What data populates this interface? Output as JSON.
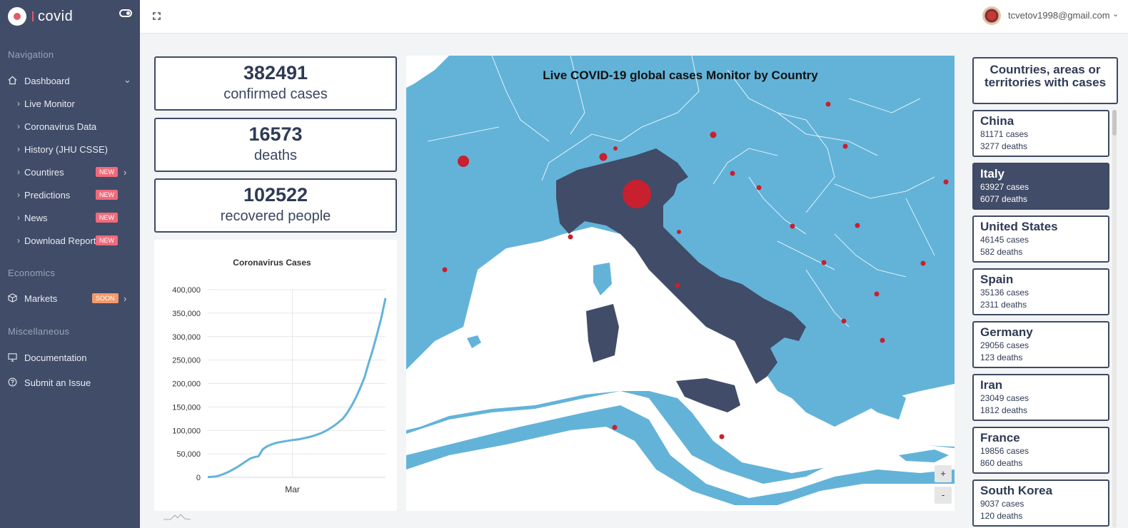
{
  "sidebar": {
    "logo_text": "covid",
    "sections": {
      "navigation": "Navigation",
      "economics": "Economics",
      "misc": "Miscellaneous"
    },
    "items": [
      {
        "label": "Dashboard"
      },
      {
        "label": "Live Monitor"
      },
      {
        "label": "Coronavirus Data"
      },
      {
        "label": "History (JHU CSSE)"
      },
      {
        "label": "Countires",
        "badge": "NEW"
      },
      {
        "label": "Predictions",
        "badge": "NEW"
      },
      {
        "label": "News",
        "badge": "NEW"
      },
      {
        "label": "Download Report",
        "badge": "NEW"
      },
      {
        "label": "Markets",
        "badge": "SOON"
      },
      {
        "label": "Documentation"
      },
      {
        "label": "Submit an Issue"
      }
    ]
  },
  "header": {
    "user_email": "tcvetov1998@gmail.com"
  },
  "stats": [
    {
      "value": "382491",
      "caption": "confirmed cases"
    },
    {
      "value": "16573",
      "caption": "deaths"
    },
    {
      "value": "102522",
      "caption": "recovered people"
    }
  ],
  "map": {
    "title": "Live COVID-19 global cases Monitor by Country",
    "zoom_in": "+",
    "zoom_out": "-",
    "colors": {
      "sea": "#63b3d9",
      "land": "#ffffff",
      "highlight": "#414c68",
      "marker": "#c8202e"
    }
  },
  "country_list": {
    "heading": "Countries, areas or territories with cases",
    "countries": [
      {
        "name": "China",
        "cases": "81171 cases",
        "deaths": "3277 deaths"
      },
      {
        "name": "Italy",
        "cases": "63927 cases",
        "deaths": "6077 deaths",
        "active": true
      },
      {
        "name": "United States",
        "cases": "46145 cases",
        "deaths": "582 deaths"
      },
      {
        "name": "Spain",
        "cases": "35136 cases",
        "deaths": "2311 deaths"
      },
      {
        "name": "Germany",
        "cases": "29056 cases",
        "deaths": "123 deaths"
      },
      {
        "name": "Iran",
        "cases": "23049 cases",
        "deaths": "1812 deaths"
      },
      {
        "name": "France",
        "cases": "19856 cases",
        "deaths": "860 deaths"
      },
      {
        "name": "South Korea",
        "cases": "9037 cases",
        "deaths": "120 deaths"
      }
    ]
  },
  "chart_data": {
    "type": "line",
    "title": "Coronavirus Cases",
    "xlabel": "",
    "ylabel": "",
    "x_tick_labels": [
      "Mar"
    ],
    "y_ticks": [
      0,
      50000,
      100000,
      150000,
      200000,
      250000,
      300000,
      350000,
      400000
    ],
    "y_tick_labels": [
      "0",
      "50,000",
      "100,000",
      "150,000",
      "200,000",
      "250,000",
      "300,000",
      "350,000",
      "400,000"
    ],
    "ylim": [
      0,
      400000
    ],
    "grid": true,
    "color": "#63b3d9",
    "series": [
      {
        "values": [
          555,
          1000,
          2000,
          4500,
          8000,
          12000,
          17000,
          22000,
          28000,
          34000,
          40000,
          43000,
          45000,
          60000,
          66000,
          70000,
          73000,
          75000,
          76500,
          78000,
          79500,
          80500,
          82000,
          84000,
          86000,
          88500,
          91500,
          95000,
          99500,
          105000,
          111000,
          118000,
          126000,
          138000,
          153000,
          170000,
          190000,
          212000,
          243000,
          272000,
          305000,
          340000,
          382000
        ]
      }
    ]
  }
}
